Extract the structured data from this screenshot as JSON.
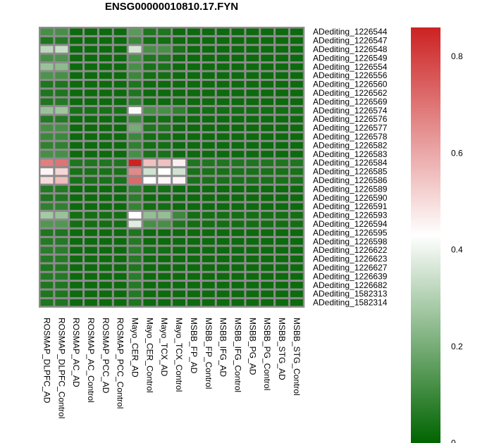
{
  "chart_data": {
    "type": "heatmap",
    "title": "ENSG00000010810.17.FYN",
    "columns": [
      "ROSMAP_DLPFC_AD",
      "ROSMAP_DLPFC_Control",
      "ROSMAP_AC_AD",
      "ROSMAP_AC_Control",
      "ROSMAP_PCC_AD",
      "ROSMAP_PCC_Control",
      "Mayo_CER_AD",
      "Mayo_CER_Control",
      "Mayo_TCX_AD",
      "Mayo_TCX_Control",
      "MSBB_FP_AD",
      "MSBB_FP_Control",
      "MSBB_IFG_AD",
      "MSBB_IFG_Control",
      "MSBB_PG_AD",
      "MSBB_PG_Control",
      "MSBB_STG_AD",
      "MSBB_STG_Control"
    ],
    "rows": [
      "ADediting_1226544",
      "ADediting_1226547",
      "ADediting_1226548",
      "ADediting_1226549",
      "ADediting_1226554",
      "ADediting_1226556",
      "ADediting_1226560",
      "ADediting_1226562",
      "ADediting_1226569",
      "ADediting_1226574",
      "ADediting_1226576",
      "ADediting_1226577",
      "ADediting_1226578",
      "ADediting_1226582",
      "ADediting_1226583",
      "ADediting_1226584",
      "ADediting_1226585",
      "ADediting_1226586",
      "ADediting_1226589",
      "ADediting_1226590",
      "ADediting_1226591",
      "ADediting_1226593",
      "ADediting_1226594",
      "ADediting_1226595",
      "ADediting_1226598",
      "ADediting_1226622",
      "ADediting_1226623",
      "ADediting_1226627",
      "ADediting_1226639",
      "ADediting_1226682",
      "ADediting_1582313",
      "ADediting_1582314"
    ],
    "values": [
      [
        0.12,
        0.12,
        0.02,
        0.02,
        0.02,
        0.02,
        0.15,
        0.05,
        0.05,
        0.02,
        0.02,
        0.02,
        0.02,
        0.02,
        0.02,
        0.02,
        0.02,
        0.02
      ],
      [
        0.05,
        0.06,
        0.02,
        0.02,
        0.02,
        0.02,
        0.1,
        0.03,
        0.03,
        0.02,
        0.02,
        0.02,
        0.02,
        0.02,
        0.02,
        0.02,
        0.02,
        0.02
      ],
      [
        0.32,
        0.34,
        0.02,
        0.02,
        0.02,
        0.02,
        0.36,
        0.12,
        0.12,
        0.04,
        0.02,
        0.02,
        0.02,
        0.02,
        0.02,
        0.02,
        0.02,
        0.02
      ],
      [
        0.12,
        0.13,
        0.02,
        0.02,
        0.02,
        0.02,
        0.12,
        0.05,
        0.05,
        0.02,
        0.02,
        0.02,
        0.02,
        0.02,
        0.02,
        0.02,
        0.02,
        0.02
      ],
      [
        0.26,
        0.24,
        0.02,
        0.02,
        0.02,
        0.02,
        0.12,
        0.04,
        0.04,
        0.02,
        0.02,
        0.02,
        0.02,
        0.02,
        0.02,
        0.02,
        0.02,
        0.02
      ],
      [
        0.13,
        0.12,
        0.02,
        0.02,
        0.02,
        0.02,
        0.1,
        0.03,
        0.03,
        0.02,
        0.02,
        0.02,
        0.02,
        0.02,
        0.02,
        0.02,
        0.02,
        0.02
      ],
      [
        0.05,
        0.05,
        0.02,
        0.02,
        0.02,
        0.02,
        0.05,
        0.02,
        0.02,
        0.02,
        0.02,
        0.02,
        0.02,
        0.02,
        0.02,
        0.02,
        0.02,
        0.02
      ],
      [
        0.05,
        0.05,
        0.02,
        0.02,
        0.02,
        0.02,
        0.05,
        0.02,
        0.02,
        0.02,
        0.02,
        0.02,
        0.02,
        0.02,
        0.02,
        0.02,
        0.02,
        0.02
      ],
      [
        0.05,
        0.06,
        0.02,
        0.02,
        0.02,
        0.02,
        0.07,
        0.02,
        0.02,
        0.02,
        0.02,
        0.02,
        0.02,
        0.02,
        0.02,
        0.02,
        0.02,
        0.02
      ],
      [
        0.26,
        0.27,
        0.04,
        0.04,
        0.04,
        0.04,
        0.44,
        0.12,
        0.12,
        0.08,
        0.03,
        0.03,
        0.03,
        0.03,
        0.03,
        0.03,
        0.03,
        0.03
      ],
      [
        0.06,
        0.06,
        0.02,
        0.02,
        0.02,
        0.02,
        0.1,
        0.03,
        0.03,
        0.02,
        0.02,
        0.02,
        0.02,
        0.02,
        0.02,
        0.02,
        0.02,
        0.02
      ],
      [
        0.12,
        0.12,
        0.02,
        0.02,
        0.02,
        0.02,
        0.2,
        0.05,
        0.05,
        0.02,
        0.02,
        0.02,
        0.02,
        0.02,
        0.02,
        0.02,
        0.02,
        0.02
      ],
      [
        0.1,
        0.1,
        0.02,
        0.02,
        0.02,
        0.02,
        0.1,
        0.03,
        0.03,
        0.02,
        0.02,
        0.02,
        0.02,
        0.02,
        0.02,
        0.02,
        0.02,
        0.02
      ],
      [
        0.08,
        0.08,
        0.02,
        0.02,
        0.02,
        0.02,
        0.08,
        0.03,
        0.03,
        0.02,
        0.02,
        0.02,
        0.02,
        0.02,
        0.02,
        0.02,
        0.02,
        0.02
      ],
      [
        0.12,
        0.12,
        0.02,
        0.02,
        0.02,
        0.02,
        0.12,
        0.04,
        0.04,
        0.02,
        0.02,
        0.02,
        0.02,
        0.02,
        0.02,
        0.02,
        0.02,
        0.02
      ],
      [
        0.68,
        0.7,
        0.05,
        0.05,
        0.05,
        0.05,
        0.86,
        0.55,
        0.55,
        0.46,
        0.05,
        0.05,
        0.05,
        0.05,
        0.05,
        0.05,
        0.05,
        0.05
      ],
      [
        0.45,
        0.51,
        0.04,
        0.04,
        0.04,
        0.04,
        0.66,
        0.35,
        0.43,
        0.35,
        0.04,
        0.04,
        0.04,
        0.04,
        0.04,
        0.04,
        0.04,
        0.04
      ],
      [
        0.5,
        0.56,
        0.04,
        0.04,
        0.04,
        0.04,
        0.72,
        0.43,
        0.45,
        0.45,
        0.04,
        0.04,
        0.04,
        0.04,
        0.04,
        0.04,
        0.04,
        0.04
      ],
      [
        0.06,
        0.06,
        0.02,
        0.02,
        0.02,
        0.02,
        0.08,
        0.03,
        0.03,
        0.02,
        0.02,
        0.02,
        0.02,
        0.02,
        0.02,
        0.02,
        0.02,
        0.02
      ],
      [
        0.05,
        0.05,
        0.02,
        0.02,
        0.02,
        0.02,
        0.07,
        0.02,
        0.02,
        0.02,
        0.02,
        0.02,
        0.02,
        0.02,
        0.02,
        0.02,
        0.02,
        0.02
      ],
      [
        0.08,
        0.08,
        0.02,
        0.02,
        0.02,
        0.02,
        0.09,
        0.03,
        0.03,
        0.02,
        0.02,
        0.02,
        0.02,
        0.02,
        0.02,
        0.02,
        0.02,
        0.02
      ],
      [
        0.28,
        0.26,
        0.03,
        0.03,
        0.03,
        0.03,
        0.43,
        0.25,
        0.25,
        0.1,
        0.03,
        0.03,
        0.03,
        0.03,
        0.03,
        0.03,
        0.03,
        0.03
      ],
      [
        0.14,
        0.14,
        0.03,
        0.03,
        0.03,
        0.03,
        0.38,
        0.12,
        0.12,
        0.05,
        0.03,
        0.03,
        0.03,
        0.03,
        0.03,
        0.03,
        0.03,
        0.03
      ],
      [
        0.05,
        0.05,
        0.02,
        0.02,
        0.02,
        0.02,
        0.05,
        0.02,
        0.02,
        0.02,
        0.02,
        0.02,
        0.02,
        0.02,
        0.02,
        0.02,
        0.02,
        0.02
      ],
      [
        0.06,
        0.06,
        0.02,
        0.02,
        0.02,
        0.02,
        0.06,
        0.02,
        0.02,
        0.02,
        0.02,
        0.02,
        0.02,
        0.02,
        0.02,
        0.02,
        0.02,
        0.02
      ],
      [
        0.07,
        0.07,
        0.02,
        0.02,
        0.02,
        0.02,
        0.07,
        0.03,
        0.03,
        0.02,
        0.02,
        0.02,
        0.02,
        0.02,
        0.02,
        0.02,
        0.02,
        0.02
      ],
      [
        0.06,
        0.06,
        0.02,
        0.02,
        0.02,
        0.02,
        0.06,
        0.02,
        0.02,
        0.02,
        0.02,
        0.02,
        0.02,
        0.02,
        0.02,
        0.02,
        0.02,
        0.02
      ],
      [
        0.05,
        0.05,
        0.02,
        0.02,
        0.02,
        0.02,
        0.05,
        0.02,
        0.02,
        0.02,
        0.02,
        0.02,
        0.02,
        0.02,
        0.02,
        0.02,
        0.02,
        0.02
      ],
      [
        0.06,
        0.06,
        0.02,
        0.02,
        0.02,
        0.02,
        0.07,
        0.02,
        0.02,
        0.02,
        0.02,
        0.02,
        0.02,
        0.02,
        0.02,
        0.02,
        0.02,
        0.02
      ],
      [
        0.05,
        0.05,
        0.02,
        0.02,
        0.02,
        0.02,
        0.06,
        0.02,
        0.02,
        0.02,
        0.02,
        0.02,
        0.02,
        0.02,
        0.02,
        0.02,
        0.02,
        0.02
      ],
      [
        0.05,
        0.05,
        0.02,
        0.02,
        0.02,
        0.02,
        0.06,
        0.02,
        0.02,
        0.02,
        0.02,
        0.02,
        0.02,
        0.02,
        0.02,
        0.02,
        0.02,
        0.02
      ],
      [
        0.05,
        0.05,
        0.02,
        0.02,
        0.02,
        0.02,
        0.05,
        0.02,
        0.02,
        0.02,
        0.02,
        0.02,
        0.02,
        0.02,
        0.02,
        0.02,
        0.02,
        0.02
      ]
    ],
    "color_scale": {
      "low": "#006400",
      "mid": "#ffffff",
      "high": "#cc2222",
      "range": [
        0,
        0.86
      ],
      "mid_value": 0.43
    },
    "cell_border_color": "#8c8c8c",
    "legend_ticks": [
      {
        "value": 0,
        "label": "0"
      },
      {
        "value": 0.2,
        "label": "0.2"
      },
      {
        "value": 0.4,
        "label": "0.4"
      },
      {
        "value": 0.6,
        "label": "0.6"
      },
      {
        "value": 0.8,
        "label": "0.8"
      }
    ]
  }
}
